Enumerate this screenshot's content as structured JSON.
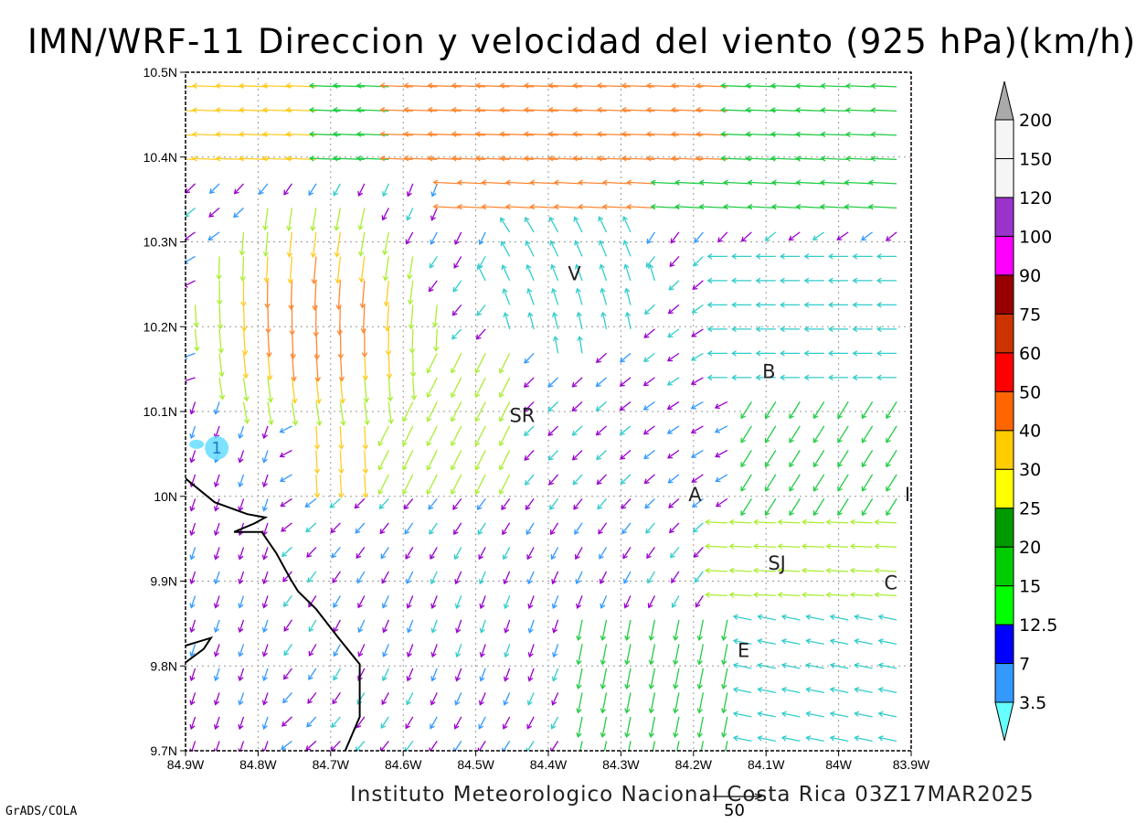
{
  "title": "IMN/WRF-11 Direccion y velocidad del viento (925 hPa)(km/h)",
  "footer": "Instituto Meteorologico Nacional Costa Rica 03Z17MAR2025",
  "credit": "GrADS/COLA",
  "reference_vector": "50",
  "map": {
    "lon_range": [
      -84.9,
      -83.9
    ],
    "lat_range": [
      9.7,
      10.5
    ],
    "lon_ticks": [
      {
        "value": -84.9,
        "label": "84.9W"
      },
      {
        "value": -84.8,
        "label": "84.8W"
      },
      {
        "value": -84.7,
        "label": "84.7W"
      },
      {
        "value": -84.6,
        "label": "84.6W"
      },
      {
        "value": -84.5,
        "label": "84.5W"
      },
      {
        "value": -84.4,
        "label": "84.4W"
      },
      {
        "value": -84.3,
        "label": "84.3W"
      },
      {
        "value": -84.2,
        "label": "84.2W"
      },
      {
        "value": -84.1,
        "label": "84.1W"
      },
      {
        "value": -84.0,
        "label": "84W"
      },
      {
        "value": -83.9,
        "label": "83.9W"
      }
    ],
    "lat_ticks": [
      {
        "value": 9.7,
        "label": "9.7N"
      },
      {
        "value": 9.8,
        "label": "9.8N"
      },
      {
        "value": 9.9,
        "label": "9.9N"
      },
      {
        "value": 10.0,
        "label": "10N"
      },
      {
        "value": 10.1,
        "label": "10.1N"
      },
      {
        "value": 10.2,
        "label": "10.2N"
      },
      {
        "value": 10.3,
        "label": "10.3N"
      },
      {
        "value": 10.4,
        "label": "10.4N"
      },
      {
        "value": 10.5,
        "label": "10.5N"
      }
    ],
    "grid": true,
    "cities": [
      {
        "label": "V",
        "lon": -84.364,
        "lat": 10.262
      },
      {
        "label": "SR",
        "lon": -84.436,
        "lat": 10.095
      },
      {
        "label": "B",
        "lon": -84.096,
        "lat": 10.147
      },
      {
        "label": "A",
        "lon": -84.198,
        "lat": 10.002
      },
      {
        "label": "SJ",
        "lon": -84.085,
        "lat": 9.921
      },
      {
        "label": "C",
        "lon": -83.928,
        "lat": 9.898
      },
      {
        "label": "E",
        "lon": -84.131,
        "lat": 9.818
      },
      {
        "label": "I",
        "lon": -83.905,
        "lat": 10.002
      }
    ],
    "spot_value": {
      "label": "1",
      "lon": -84.857,
      "lat": 10.057
    },
    "coastline": [
      [
        [
          -84.9,
          10.021
        ],
        [
          -84.86,
          9.993
        ],
        [
          -84.815,
          9.979
        ],
        [
          -84.79,
          9.975
        ],
        [
          -84.805,
          9.968
        ],
        [
          -84.833,
          9.958
        ],
        [
          -84.795,
          9.958
        ],
        [
          -84.775,
          9.933
        ],
        [
          -84.755,
          9.902
        ],
        [
          -84.745,
          9.888
        ],
        [
          -84.72,
          9.867
        ],
        [
          -84.69,
          9.834
        ],
        [
          -84.66,
          9.802
        ],
        [
          -84.66,
          9.74
        ],
        [
          -84.68,
          9.7
        ]
      ],
      [
        [
          -84.9,
          9.824
        ],
        [
          -84.865,
          9.833
        ],
        [
          -84.875,
          9.82
        ],
        [
          -84.9,
          9.804
        ]
      ]
    ]
  },
  "colorbar": {
    "levels": [
      "3.5",
      "7",
      "12.5",
      "15",
      "20",
      "25",
      "30",
      "40",
      "50",
      "60",
      "75",
      "90",
      "100",
      "120",
      "150",
      "200"
    ],
    "colors": [
      "#66ffff",
      "#3399ff",
      "#0000ff",
      "#00ff00",
      "#00cc00",
      "#009900",
      "#ffff00",
      "#ffcc00",
      "#ff6600",
      "#ff0000",
      "#cc3300",
      "#990000",
      "#ff00ff",
      "#9933cc",
      "#f5f5f5",
      "#aaaaaa"
    ]
  },
  "wind_field": {
    "description_units": "km/h",
    "colors": {
      "calm": "#9900cc",
      "weak": "#3399ff",
      "light": "#33cccc",
      "moderate": "#22cc44",
      "fresh": "#aaee33",
      "strong": "#ffcc22",
      "very_strong": "#ff8833"
    }
  }
}
